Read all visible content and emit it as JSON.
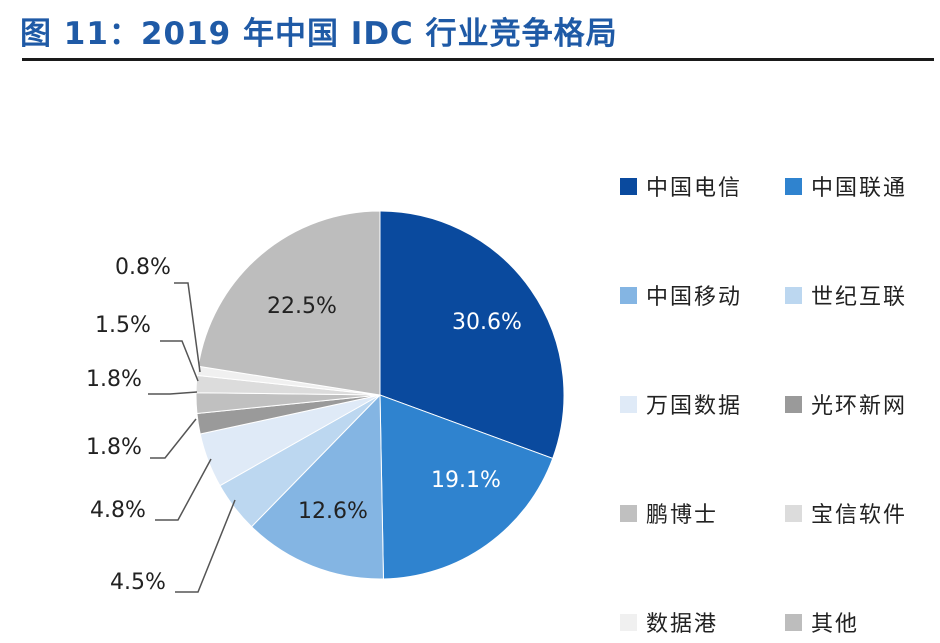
{
  "title": "图 11：2019 年中国 IDC 行业竞争格局",
  "chart_data": {
    "type": "pie",
    "title": "图 11：2019 年中国 IDC 行业竞争格局",
    "legend_position": "right",
    "slices": [
      {
        "name": "中国电信",
        "value": 30.6,
        "label": "30.6%",
        "color": "#0a4a9e"
      },
      {
        "name": "中国联通",
        "value": 19.1,
        "label": "19.1%",
        "color": "#2f83cf"
      },
      {
        "name": "中国移动",
        "value": 12.6,
        "label": "12.6%",
        "color": "#84b5e3"
      },
      {
        "name": "世纪互联",
        "value": 4.5,
        "label": "4.5%",
        "color": "#bcd7f0"
      },
      {
        "name": "万国数据",
        "value": 4.8,
        "label": "4.8%",
        "color": "#dfeaf7"
      },
      {
        "name": "光环新网",
        "value": 1.8,
        "label": "1.8%",
        "color": "#9a9a9a"
      },
      {
        "name": "鹏博士",
        "value": 1.8,
        "label": "1.8%",
        "color": "#c0c0c0"
      },
      {
        "name": "宝信软件",
        "value": 1.5,
        "label": "1.5%",
        "color": "#dcdcdc"
      },
      {
        "name": "数据港",
        "value": 0.8,
        "label": "0.8%",
        "color": "#f0f0f0"
      },
      {
        "name": "其他",
        "value": 22.5,
        "label": "22.5%",
        "color": "#bdbdbd"
      }
    ]
  }
}
